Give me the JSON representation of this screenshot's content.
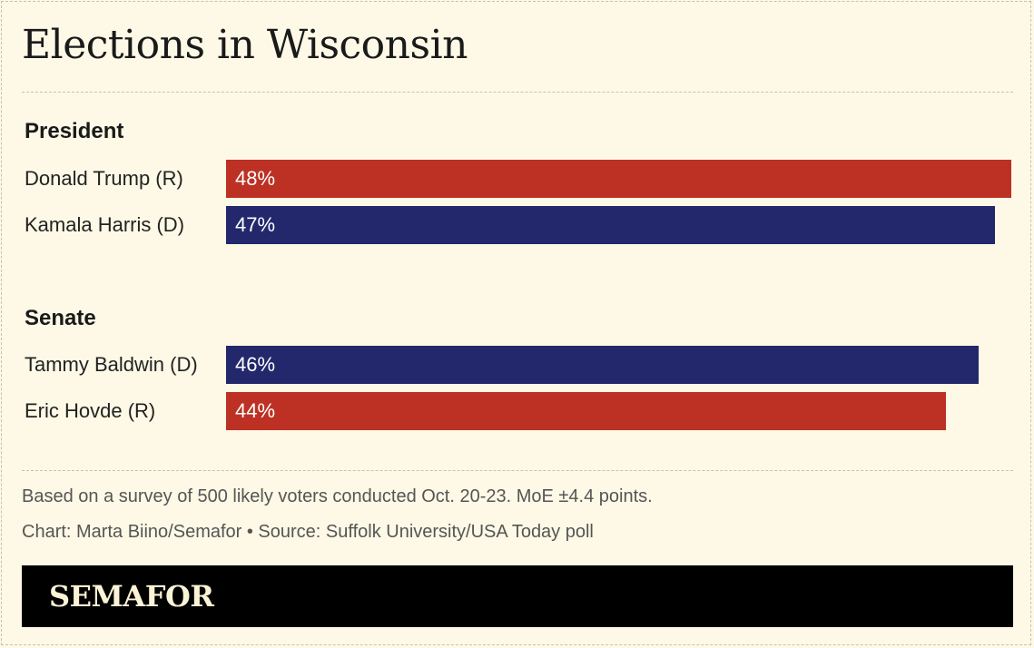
{
  "title": "Elections in Wisconsin",
  "colors": {
    "republican": "#bc3124",
    "democrat": "#22286b",
    "background": "#fdf9e6"
  },
  "chart_data": {
    "type": "bar",
    "orientation": "horizontal",
    "value_suffix": "%",
    "groups": [
      {
        "name": "President",
        "bars": [
          {
            "label": "Donald Trump (R)",
            "value": 48,
            "party": "republican"
          },
          {
            "label": "Kamala Harris (D)",
            "value": 47,
            "party": "democrat"
          }
        ]
      },
      {
        "name": "Senate",
        "bars": [
          {
            "label": "Tammy Baldwin (D)",
            "value": 46,
            "party": "democrat"
          },
          {
            "label": "Eric Hovde (R)",
            "value": 44,
            "party": "republican"
          }
        ]
      }
    ]
  },
  "notes": {
    "survey": "Based on a survey of 500 likely voters conducted Oct. 20-23. MoE ±4.4 points.",
    "credit": "Chart: Marta Biino/Semafor • Source: Suffolk University/USA Today poll"
  },
  "footer": {
    "logo_text": "SEMAFOR"
  }
}
